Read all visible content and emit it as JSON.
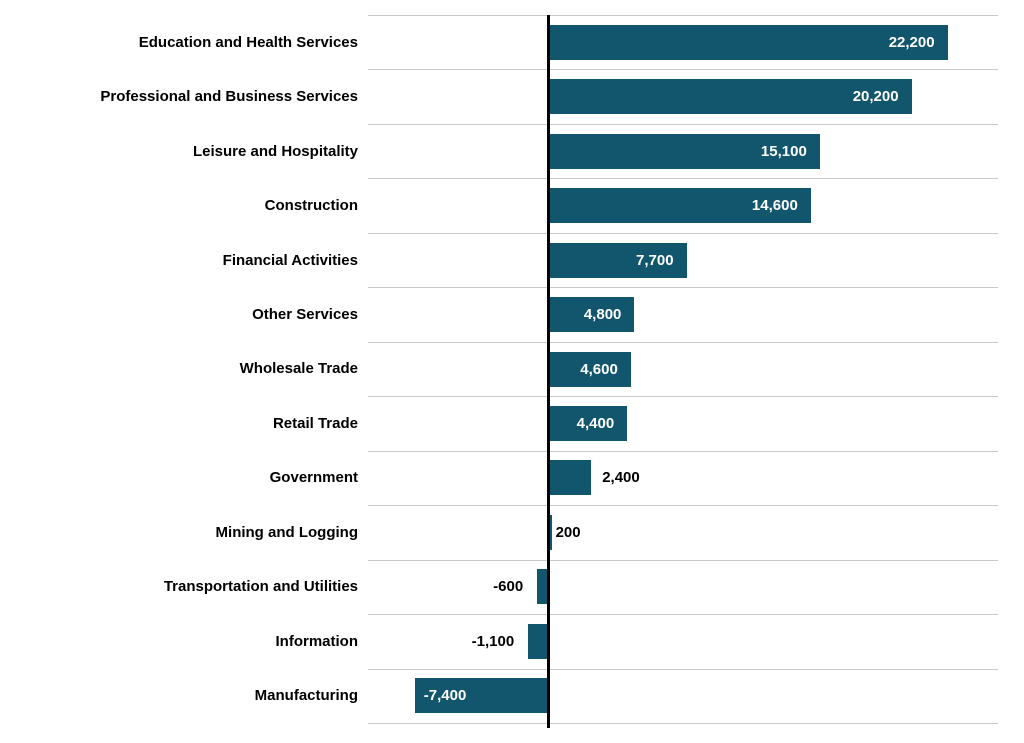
{
  "chart_data": {
    "type": "bar",
    "orientation": "horizontal",
    "title": "",
    "xlabel": "",
    "ylabel": "",
    "categories": [
      "Education and Health Services",
      "Professional and Business Services",
      "Leisure and Hospitality",
      "Construction",
      "Financial Activities",
      "Other Services",
      "Wholesale Trade",
      "Retail Trade",
      "Government",
      "Mining and Logging",
      "Transportation and Utilities",
      "Information",
      "Manufacturing"
    ],
    "values": [
      22200,
      20200,
      15100,
      14600,
      7700,
      4800,
      4600,
      4400,
      2400,
      200,
      -600,
      -1100,
      -7400
    ],
    "value_labels": [
      "22,200",
      "20,200",
      "15,100",
      "14,600",
      "7,700",
      "4,800",
      "4,600",
      "4,400",
      "2,400",
      "200",
      "-600",
      "-1,100",
      "-7,400"
    ],
    "label_inside": [
      true,
      true,
      true,
      true,
      true,
      true,
      true,
      true,
      false,
      false,
      false,
      false,
      true
    ],
    "xlim": [
      -10000,
      25000
    ],
    "grid": "horizontal-row-separators",
    "legend": "none",
    "axis_tick_labels": "none",
    "colors": {
      "bar": "#12566d",
      "grid": "#c9c9c9",
      "zero_axis": "#000000",
      "label_inside": "#ffffff",
      "label_outside": "#000000",
      "category_label": "#000000",
      "background": "#ffffff"
    }
  }
}
